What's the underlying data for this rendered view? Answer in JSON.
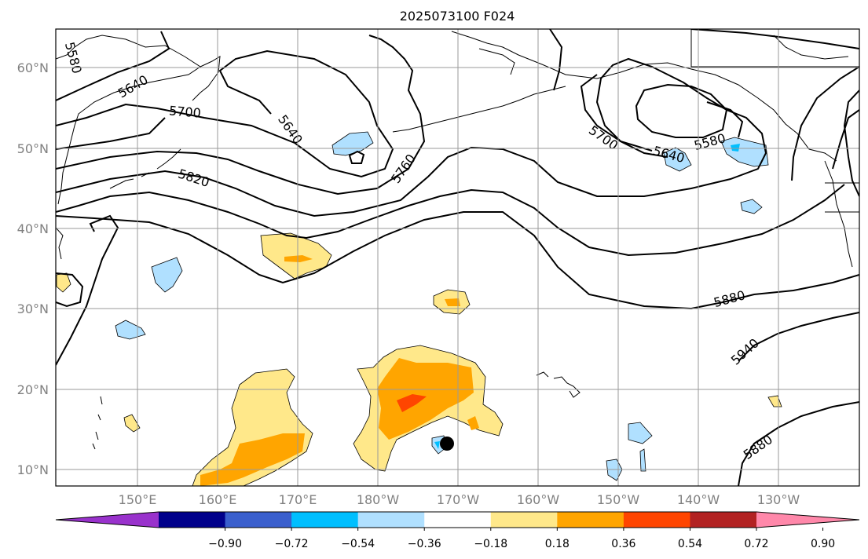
{
  "title": "2025073100 F024",
  "latitude_labels": [
    "60°N",
    "50°N",
    "40°N",
    "30°N",
    "20°N",
    "10°N"
  ],
  "longitude_labels": [
    "150°E",
    "160°E",
    "170°E",
    "180°W",
    "170°W",
    "160°W",
    "150°W",
    "140°W",
    "130°W"
  ],
  "contour_labels": [
    "5580",
    "5640",
    "5700",
    "5760",
    "5820",
    "5640",
    "5700",
    "5640",
    "5580",
    "5880",
    "5940",
    "5880"
  ],
  "colorbar": {
    "ticks": [
      "−0.90",
      "−0.72",
      "−0.54",
      "−0.36",
      "−0.18",
      "0.18",
      "0.36",
      "0.54",
      "0.72",
      "0.90"
    ],
    "colors": [
      "#9932CC",
      "#00008B",
      "#3A5FCD",
      "#00BFFF",
      "#B0E0FF",
      "#FFFFFF",
      "#FFE88A",
      "#FFA500",
      "#FF4500",
      "#B22222",
      "#FF88AA"
    ]
  }
}
